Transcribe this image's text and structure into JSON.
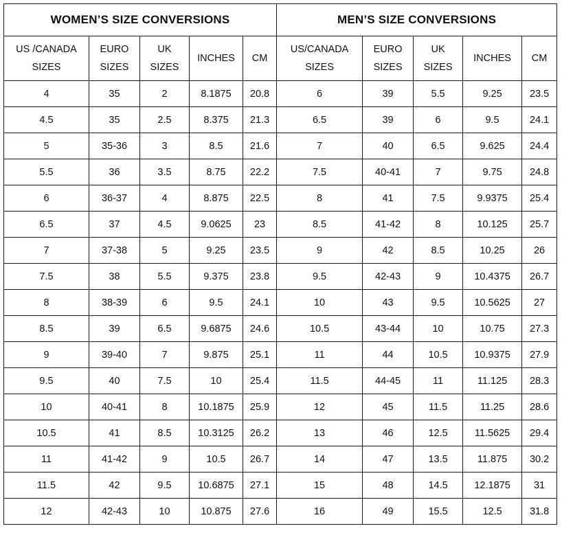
{
  "women": {
    "title": "WOMEN’S SIZE CONVERSIONS",
    "headers": [
      "US /CANADA\nSIZES",
      "EURO\nSIZES",
      "UK\nSIZES",
      "INCHES",
      "CM"
    ],
    "rows": [
      [
        "4",
        "35",
        "2",
        "8.1875",
        "20.8"
      ],
      [
        "4.5",
        "35",
        "2.5",
        "8.375",
        "21.3"
      ],
      [
        "5",
        "35-36",
        "3",
        "8.5",
        "21.6"
      ],
      [
        "5.5",
        "36",
        "3.5",
        "8.75",
        "22.2"
      ],
      [
        "6",
        "36-37",
        "4",
        "8.875",
        "22.5"
      ],
      [
        "6.5",
        "37",
        "4.5",
        "9.0625",
        "23"
      ],
      [
        "7",
        "37-38",
        "5",
        "9.25",
        "23.5"
      ],
      [
        "7.5",
        "38",
        "5.5",
        "9.375",
        "23.8"
      ],
      [
        "8",
        "38-39",
        "6",
        "9.5",
        "24.1"
      ],
      [
        "8.5",
        "39",
        "6.5",
        "9.6875",
        "24.6"
      ],
      [
        "9",
        "39-40",
        "7",
        "9.875",
        "25.1"
      ],
      [
        "9.5",
        "40",
        "7.5",
        "10",
        "25.4"
      ],
      [
        "10",
        "40-41",
        "8",
        "10.1875",
        "25.9"
      ],
      [
        "10.5",
        "41",
        "8.5",
        "10.3125",
        "26.2"
      ],
      [
        "11",
        "41-42",
        "9",
        "10.5",
        "26.7"
      ],
      [
        "11.5",
        "42",
        "9.5",
        "10.6875",
        "27.1"
      ],
      [
        "12",
        "42-43",
        "10",
        "10.875",
        "27.6"
      ]
    ]
  },
  "men": {
    "title": "MEN’S SIZE CONVERSIONS",
    "headers": [
      "US/CANADA\nSIZES",
      "EURO\nSIZES",
      "UK\nSIZES",
      "INCHES",
      "CM"
    ],
    "rows": [
      [
        "6",
        "39",
        "5.5",
        "9.25",
        "23.5"
      ],
      [
        "6.5",
        "39",
        "6",
        "9.5",
        "24.1"
      ],
      [
        "7",
        "40",
        "6.5",
        "9.625",
        "24.4"
      ],
      [
        "7.5",
        "40-41",
        "7",
        "9.75",
        "24.8"
      ],
      [
        "8",
        "41",
        "7.5",
        "9.9375",
        "25.4"
      ],
      [
        "8.5",
        "41-42",
        "8",
        "10.125",
        "25.7"
      ],
      [
        "9",
        "42",
        "8.5",
        "10.25",
        "26"
      ],
      [
        "9.5",
        "42-43",
        "9",
        "10.4375",
        "26.7"
      ],
      [
        "10",
        "43",
        "9.5",
        "10.5625",
        "27"
      ],
      [
        "10.5",
        "43-44",
        "10",
        "10.75",
        "27.3"
      ],
      [
        "11",
        "44",
        "10.5",
        "10.9375",
        "27.9"
      ],
      [
        "11.5",
        "44-45",
        "11",
        "11.125",
        "28.3"
      ],
      [
        "12",
        "45",
        "11.5",
        "11.25",
        "28.6"
      ],
      [
        "13",
        "46",
        "12.5",
        "11.5625",
        "29.4"
      ],
      [
        "14",
        "47",
        "13.5",
        "11.875",
        "30.2"
      ],
      [
        "15",
        "48",
        "14.5",
        "12.1875",
        "31"
      ],
      [
        "16",
        "49",
        "15.5",
        "12.5",
        "31.8"
      ]
    ]
  }
}
